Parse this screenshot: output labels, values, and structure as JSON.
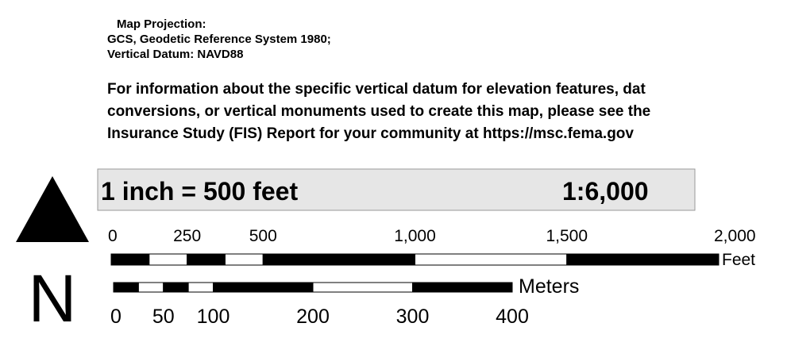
{
  "projection": {
    "title": "Map Projection:",
    "system": "GCS,  Geodetic Reference System 1980;",
    "datum": "Vertical Datum: NAVD88"
  },
  "note": [
    "For information about the specific vertical datum for elevation features, dat",
    "conversions, or vertical monuments used to create this map, please see the",
    "Insurance Study (FIS) Report for your community at https://msc.fema.gov"
  ],
  "scale": {
    "text": "1 inch = 500 feet",
    "ratio": "1:6,000"
  },
  "north": "N",
  "feet_bar": {
    "unit": "Feet",
    "lim": [
      0,
      2000
    ],
    "ticks": [
      0,
      250,
      500,
      {
        "value": 1000,
        "label": "1,000"
      },
      {
        "value": 1500,
        "label": "1,500"
      },
      {
        "value": 2000,
        "label": "2,000"
      }
    ],
    "segments": [
      0,
      125,
      250,
      375,
      500,
      1000,
      1500,
      2000
    ]
  },
  "meters_bar": {
    "unit": "Meters",
    "lim": [
      0,
      400
    ],
    "ticks": [
      0,
      50,
      100,
      200,
      300,
      400
    ],
    "segments": [
      0,
      25,
      50,
      75,
      100,
      200,
      300,
      400
    ]
  }
}
